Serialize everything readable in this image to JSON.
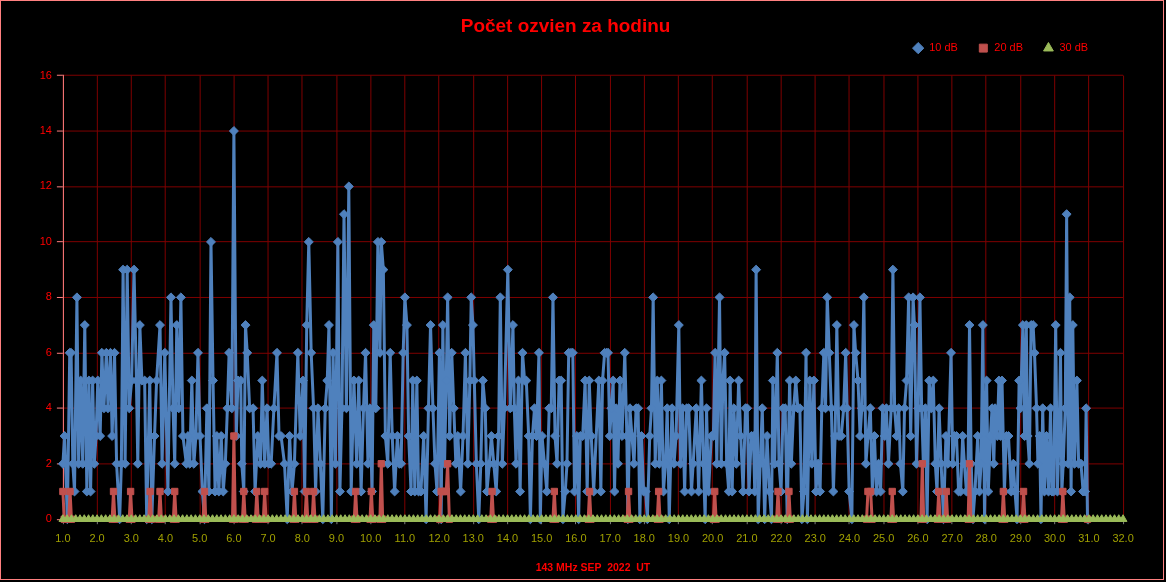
{
  "chart_data": {
    "type": "line",
    "title": "Počet ozvien za hodinu",
    "xlabel": "143 MHz SEP  2022  UT",
    "xlim": [
      1,
      32
    ],
    "xticks": [
      {
        "value": 1,
        "label": "1.0"
      },
      {
        "value": 2,
        "label": "2.0"
      },
      {
        "value": 3,
        "label": "3.0"
      },
      {
        "value": 4,
        "label": "4.0"
      },
      {
        "value": 5,
        "label": "5.0"
      },
      {
        "value": 6,
        "label": "6.0"
      },
      {
        "value": 7,
        "label": "7.0"
      },
      {
        "value": 8,
        "label": "8.0"
      },
      {
        "value": 9,
        "label": "9.0"
      },
      {
        "value": 10,
        "label": "10.0"
      },
      {
        "value": 11,
        "label": "11.0"
      },
      {
        "value": 12,
        "label": "12.0"
      },
      {
        "value": 13,
        "label": "13.0"
      },
      {
        "value": 14,
        "label": "14.0"
      },
      {
        "value": 15,
        "label": "15.0"
      },
      {
        "value": 16,
        "label": "16.0"
      },
      {
        "value": 17,
        "label": "17.0"
      },
      {
        "value": 18,
        "label": "18.0"
      },
      {
        "value": 19,
        "label": "19.0"
      },
      {
        "value": 20,
        "label": "20.0"
      },
      {
        "value": 21,
        "label": "21.0"
      },
      {
        "value": 22,
        "label": "22.0"
      },
      {
        "value": 23,
        "label": "23.0"
      },
      {
        "value": 24,
        "label": "24.0"
      },
      {
        "value": 25,
        "label": "25.0"
      },
      {
        "value": 26,
        "label": "26.0"
      },
      {
        "value": 27,
        "label": "27.0"
      },
      {
        "value": 28,
        "label": "28.0"
      },
      {
        "value": 29,
        "label": "29.0"
      },
      {
        "value": 30,
        "label": "30.0"
      },
      {
        "value": 31,
        "label": "31.0"
      },
      {
        "value": 32,
        "label": "32.0"
      }
    ],
    "ylim": [
      0,
      16
    ],
    "yticks": [
      0,
      2,
      4,
      6,
      8,
      10,
      12,
      14,
      16
    ],
    "grid": true,
    "legend": "top right",
    "series": [
      {
        "name": "10 dB",
        "color": "#4f81bd",
        "marker": "diamond",
        "x": [
          1.0,
          1.05,
          1.13,
          1.2,
          1.24,
          1.29,
          1.34,
          1.41,
          1.46,
          1.52,
          1.58,
          1.64,
          1.7,
          1.76,
          1.81,
          1.87,
          1.92,
          1.97,
          2.02,
          2.09,
          2.14,
          2.2,
          2.27,
          2.32,
          2.39,
          2.44,
          2.51,
          2.57,
          2.66,
          2.71,
          2.76,
          2.82,
          2.88,
          2.94,
          3.01,
          3.08,
          3.15,
          3.19,
          3.25,
          3.31,
          3.39,
          3.45,
          3.54,
          3.6,
          3.68,
          3.74,
          3.84,
          3.9,
          3.98,
          4.07,
          4.16,
          4.22,
          4.27,
          4.33,
          4.39,
          4.45,
          4.51,
          4.61,
          4.66,
          4.71,
          4.77,
          4.83,
          4.89,
          4.95,
          5.01,
          5.08,
          5.14,
          5.21,
          5.27,
          5.33,
          5.39,
          5.45,
          5.5,
          5.56,
          5.63,
          5.69,
          5.75,
          5.81,
          5.86,
          5.94,
          6.0,
          6.07,
          6.12,
          6.2,
          6.23,
          6.29,
          6.34,
          6.39,
          6.46,
          6.56,
          6.62,
          6.7,
          6.78,
          6.83,
          6.9,
          6.97,
          7.02,
          7.09,
          7.17,
          7.26,
          7.32,
          7.38,
          7.48,
          7.56,
          7.63,
          7.7,
          7.77,
          7.87,
          7.94,
          8.02,
          8.07,
          8.13,
          8.19,
          8.26,
          8.33,
          8.39,
          8.46,
          8.53,
          8.6,
          8.67,
          8.73,
          8.78,
          8.85,
          8.9,
          8.97,
          9.04,
          9.1,
          9.16,
          9.22,
          9.29,
          9.36,
          9.43,
          9.51,
          9.59,
          9.65,
          9.72,
          9.79,
          9.85,
          9.92,
          9.98,
          10.04,
          10.09,
          10.15,
          10.21,
          10.27,
          10.31,
          10.37,
          10.43,
          10.5,
          10.57,
          10.63,
          10.7,
          10.78,
          10.84,
          10.89,
          10.95,
          11.0,
          11.06,
          11.11,
          11.18,
          11.23,
          11.29,
          11.35,
          11.4,
          11.47,
          11.55,
          11.62,
          11.69,
          11.75,
          11.82,
          11.88,
          11.94,
          12.01,
          12.06,
          12.11,
          12.16,
          12.21,
          12.25,
          12.31,
          12.37,
          12.43,
          12.49,
          12.55,
          12.63,
          12.7,
          12.77,
          12.84,
          12.9,
          12.94,
          12.99,
          13.03,
          13.09,
          13.16,
          13.22,
          13.28,
          13.35,
          13.4,
          13.47,
          13.53,
          13.6,
          13.67,
          13.74,
          13.79,
          13.85,
          13.91,
          14.01,
          14.08,
          14.16,
          14.2,
          14.25,
          14.32,
          14.37,
          14.44,
          14.5,
          14.55,
          14.62,
          14.67,
          14.73,
          14.79,
          14.85,
          14.92,
          14.96,
          15.01,
          15.08,
          15.15,
          15.22,
          15.28,
          15.33,
          15.39,
          15.45,
          15.51,
          15.57,
          15.62,
          15.69,
          15.74,
          15.79,
          15.86,
          15.91,
          15.96,
          16.03,
          16.08,
          16.13,
          16.2,
          16.27,
          16.33,
          16.39,
          16.45,
          16.52,
          16.67,
          16.73,
          16.78,
          16.84,
          16.9,
          16.94,
          16.99,
          17.04,
          17.09,
          17.13,
          17.18,
          17.23,
          17.29,
          17.35,
          17.43,
          17.49,
          17.52,
          17.58,
          17.64,
          17.7,
          17.76,
          17.82,
          17.87,
          17.92,
          17.98,
          18.04,
          18.09,
          18.16,
          18.21,
          18.26,
          18.32,
          18.38,
          18.44,
          18.5,
          18.56,
          18.62,
          18.67,
          18.73,
          18.81,
          18.87,
          18.93,
          19.01,
          19.06,
          19.12,
          19.18,
          19.24,
          19.3,
          19.38,
          19.43,
          19.52,
          19.59,
          19.67,
          19.73,
          19.78,
          19.82,
          19.88,
          19.96,
          20.02,
          20.07,
          20.12,
          20.2,
          20.25,
          20.3,
          20.35,
          20.41,
          20.47,
          20.51,
          20.57,
          20.62,
          20.69,
          20.76,
          20.82,
          20.89,
          20.96,
          21.01,
          21.06,
          21.13,
          21.19,
          21.23,
          21.27,
          21.33,
          21.39,
          21.45,
          21.52,
          21.59,
          21.66,
          21.72,
          21.76,
          21.81,
          21.89,
          21.94,
          22.0,
          22.06,
          22.12,
          22.18,
          22.25,
          22.3,
          22.37,
          22.43,
          22.49,
          22.55,
          22.61,
          22.67,
          22.73,
          22.77,
          22.84,
          22.9,
          22.96,
          23.02,
          23.08,
          23.14,
          23.19,
          23.25,
          23.3,
          23.35,
          23.41,
          23.47,
          23.53,
          23.58,
          23.63,
          23.69,
          23.76,
          23.83,
          23.89,
          23.93,
          23.99,
          24.07,
          24.13,
          24.18,
          24.25,
          24.31,
          24.36,
          24.42,
          24.48,
          24.54,
          24.61,
          24.67,
          24.73,
          24.79,
          24.85,
          24.91,
          24.97,
          25.03,
          25.08,
          25.14,
          25.22,
          25.27,
          25.32,
          25.38,
          25.44,
          25.49,
          25.56,
          25.61,
          25.67,
          25.73,
          25.79,
          25.86,
          25.9,
          25.96,
          26.01,
          26.06,
          26.11,
          26.16,
          26.22,
          26.27,
          26.33,
          26.39,
          26.45,
          26.51,
          26.56,
          26.62,
          26.68,
          26.75,
          26.82,
          26.88,
          26.97,
          27.02,
          27.07,
          27.13,
          27.19,
          27.25,
          27.31,
          27.36,
          27.42,
          27.46,
          27.51,
          27.56,
          27.61,
          27.67,
          27.75,
          27.8,
          27.85,
          27.9,
          27.95,
          28.01,
          28.06,
          28.12,
          28.17,
          28.22,
          28.26,
          28.32,
          28.37,
          28.42,
          28.46,
          28.53,
          28.59,
          28.65,
          28.73,
          28.79,
          28.84,
          28.9,
          28.96,
          29.0,
          29.07,
          29.12,
          29.17,
          29.21,
          29.26,
          29.31,
          29.37,
          29.41,
          29.47,
          29.51,
          29.56,
          29.6,
          29.65,
          29.7,
          29.76,
          29.82,
          29.88,
          29.92,
          29.97,
          30.03,
          30.08,
          30.13,
          30.17,
          30.21,
          30.25,
          30.31,
          30.35,
          30.4,
          30.44,
          30.48,
          30.53,
          30.58,
          30.65,
          30.7,
          30.77,
          30.83,
          30.89,
          30.92,
          30.96
        ],
        "values": [
          2,
          3,
          0,
          6,
          6,
          2,
          1,
          8,
          2,
          5,
          2,
          7,
          1,
          5,
          1,
          5,
          2,
          3,
          5,
          3,
          6,
          4,
          6,
          4,
          6,
          3,
          6,
          2,
          0,
          2,
          9,
          2,
          9,
          4,
          5,
          9,
          5,
          2,
          7,
          5,
          5,
          0,
          5,
          0,
          3,
          5,
          7,
          2,
          6,
          1,
          8,
          4,
          2,
          7,
          4,
          8,
          3,
          2,
          3,
          2,
          5,
          2,
          3,
          6,
          3,
          1,
          0,
          4,
          1,
          10,
          5,
          1,
          3,
          1,
          3,
          1,
          2,
          4,
          6,
          4,
          14,
          3,
          5,
          5,
          2,
          1,
          7,
          6,
          4,
          4,
          1,
          3,
          2,
          5,
          2,
          4,
          2,
          2,
          4,
          6,
          3,
          3,
          2,
          0,
          3,
          1,
          2,
          6,
          3,
          5,
          1,
          7,
          10,
          6,
          4,
          1,
          4,
          2,
          0,
          4,
          5,
          7,
          0,
          6,
          2,
          10,
          1,
          4,
          11,
          4,
          12,
          1,
          5,
          2,
          5,
          1,
          4,
          6,
          2,
          4,
          1,
          7,
          4,
          10,
          6,
          10,
          9,
          3,
          2,
          6,
          3,
          1,
          3,
          2,
          2,
          6,
          8,
          7,
          3,
          1,
          5,
          1,
          5,
          1,
          1,
          3,
          0,
          4,
          7,
          4,
          2,
          1,
          6,
          0,
          7,
          2,
          5,
          8,
          3,
          6,
          4,
          2,
          3,
          1,
          3,
          6,
          2,
          5,
          8,
          7,
          5,
          2,
          0,
          2,
          5,
          4,
          1,
          2,
          3,
          2,
          1,
          3,
          8,
          2,
          4,
          9,
          4,
          7,
          4,
          2,
          5,
          1,
          6,
          5,
          5,
          3,
          0,
          3,
          4,
          3,
          6,
          0,
          3,
          2,
          1,
          4,
          4,
          8,
          3,
          2,
          5,
          5,
          0,
          1,
          2,
          6,
          6,
          6,
          1,
          3,
          0,
          3,
          3,
          5,
          1,
          5,
          3,
          1,
          5,
          1,
          5,
          6,
          6,
          6,
          3,
          4,
          5,
          1,
          4,
          2,
          5,
          3,
          6,
          3,
          0,
          4,
          3,
          2,
          4,
          4,
          0,
          3,
          1,
          1,
          0,
          3,
          4,
          8,
          2,
          5,
          2,
          5,
          1,
          2,
          4,
          0,
          4,
          2,
          3,
          7,
          2,
          4,
          1,
          4,
          4,
          1,
          2,
          4,
          1,
          5,
          2,
          0,
          4,
          1,
          3,
          3,
          6,
          2,
          8,
          2,
          5,
          6,
          2,
          1,
          5,
          1,
          4,
          2,
          5,
          3,
          1,
          4,
          4,
          1,
          3,
          3,
          1,
          9,
          0,
          2,
          4,
          0,
          3,
          1,
          0,
          5,
          2,
          6,
          2,
          1,
          4,
          4,
          0,
          5,
          2,
          4,
          5,
          4,
          4,
          0,
          1,
          6,
          0,
          5,
          2,
          5,
          1,
          2,
          1,
          4,
          6,
          4,
          8,
          6,
          4,
          1,
          3,
          7,
          3,
          3,
          4,
          6,
          4,
          1,
          0,
          7,
          6,
          5,
          3,
          4,
          8,
          2,
          3,
          4,
          1,
          3,
          1,
          2,
          1,
          4,
          3,
          4,
          2,
          4,
          9,
          4,
          3,
          4,
          2,
          1,
          4,
          5,
          8,
          3,
          8,
          7,
          2,
          4,
          8,
          4,
          2,
          4,
          0,
          5,
          4,
          5,
          2,
          1,
          4,
          2,
          0,
          3,
          2,
          6,
          2,
          3,
          3,
          1,
          1,
          3,
          2,
          1,
          1,
          7,
          2,
          0,
          1,
          3,
          1,
          2,
          7,
          0,
          5,
          1,
          3,
          4,
          2,
          4,
          3,
          5,
          3,
          5,
          1,
          3,
          3,
          1,
          2,
          1,
          0,
          5,
          4,
          7,
          3,
          7,
          3,
          2,
          7,
          7,
          6,
          4,
          2,
          3,
          0,
          4,
          1,
          3,
          1,
          4,
          1,
          1,
          7,
          1,
          3,
          6,
          1,
          2,
          4,
          11,
          2,
          8,
          1,
          7,
          2,
          5,
          2,
          2,
          1,
          1,
          4,
          0
        ]
      },
      {
        "name": "20 dB",
        "color": "#c0504d",
        "marker": "square",
        "x": [
          1.0,
          1.04,
          1.17,
          1.21,
          1.25,
          2.44,
          2.48,
          2.52,
          2.94,
          2.98,
          3.02,
          3.51,
          3.55,
          3.59,
          3.8,
          3.84,
          3.88,
          4.23,
          4.27,
          4.31,
          5.1,
          5.14,
          5.18,
          5.96,
          6.0,
          6.04,
          6.25,
          6.29,
          6.33,
          6.63,
          6.67,
          6.71,
          6.86,
          6.9,
          6.94,
          7.73,
          7.77,
          7.81,
          8.08,
          8.12,
          8.16,
          8.29,
          8.33,
          8.37,
          9.52,
          9.56,
          9.6,
          9.98,
          10.02,
          10.06,
          10.27,
          10.31,
          10.35,
          12.02,
          12.06,
          12.11,
          12.16,
          12.21,
          12.25,
          12.3,
          13.51,
          13.55,
          13.59,
          15.33,
          15.37,
          15.41,
          16.36,
          16.4,
          16.44,
          17.5,
          17.54,
          17.58,
          18.38,
          18.42,
          18.46,
          20.02,
          20.06,
          20.1,
          21.87,
          21.91,
          21.95,
          22.19,
          22.23,
          22.27,
          24.5,
          24.54,
          24.62,
          24.66,
          25.21,
          25.25,
          25.29,
          26.09,
          26.13,
          26.17,
          26.57,
          26.61,
          26.65,
          26.79,
          26.83,
          26.87,
          27.47,
          27.51,
          27.55,
          28.46,
          28.5,
          28.54,
          29.05,
          29.09,
          29.13,
          30.2,
          30.24,
          30.28,
          30.96
        ],
        "values": [
          1,
          0,
          0,
          1,
          0,
          0,
          1,
          0,
          0,
          1,
          0,
          0,
          1,
          0,
          0,
          1,
          0,
          0,
          1,
          0,
          0,
          1,
          0,
          0,
          3,
          0,
          0,
          1,
          0,
          0,
          1,
          0,
          0,
          1,
          0,
          0,
          1,
          0,
          0,
          1,
          0,
          0,
          1,
          0,
          0,
          1,
          0,
          0,
          1,
          0,
          0,
          2,
          0,
          0,
          1,
          1,
          1,
          1,
          2,
          0,
          0,
          1,
          0,
          0,
          1,
          0,
          0,
          1,
          0,
          0,
          1,
          0,
          0,
          1,
          0,
          0,
          1,
          0,
          0,
          1,
          0,
          0,
          1,
          0,
          0,
          1,
          1,
          0,
          0,
          1,
          0,
          0,
          2,
          0,
          0,
          1,
          0,
          0,
          1,
          0,
          0,
          2,
          0,
          0,
          1,
          0,
          0,
          1,
          0,
          0,
          1,
          0,
          0
        ]
      },
      {
        "name": "30 dB",
        "color": "#9bbb59",
        "marker": "triangle",
        "x": [
          1,
          1.125,
          1.25,
          1.375,
          1.5,
          1.625,
          1.75,
          1.875,
          2,
          2.125,
          2.25,
          2.375,
          2.5,
          2.625,
          2.75,
          2.875,
          3,
          3.125,
          3.25,
          3.375,
          3.5,
          3.625,
          3.75,
          3.875,
          4,
          4.125,
          4.25,
          4.375,
          4.5,
          4.625,
          4.75,
          4.875,
          5,
          5.125,
          5.25,
          5.375,
          5.5,
          5.625,
          5.75,
          5.875,
          6,
          6.125,
          6.25,
          6.375,
          6.5,
          6.625,
          6.75,
          6.875,
          7,
          7.125,
          7.25,
          7.375,
          7.5,
          7.625,
          7.75,
          7.875,
          8,
          8.125,
          8.25,
          8.375,
          8.5,
          8.625,
          8.75,
          8.875,
          9,
          9.125,
          9.25,
          9.375,
          9.5,
          9.625,
          9.75,
          9.875,
          10,
          10.125,
          10.25,
          10.375,
          10.5,
          10.625,
          10.75,
          10.875,
          11,
          11.125,
          11.25,
          11.375,
          11.5,
          11.625,
          11.75,
          11.875,
          12,
          12.125,
          12.25,
          12.375,
          12.5,
          12.625,
          12.75,
          12.875,
          13,
          13.125,
          13.25,
          13.375,
          13.5,
          13.625,
          13.75,
          13.875,
          14,
          14.125,
          14.25,
          14.375,
          14.5,
          14.625,
          14.75,
          14.875,
          15,
          15.125,
          15.25,
          15.375,
          15.5,
          15.625,
          15.75,
          15.875,
          16,
          16.125,
          16.25,
          16.375,
          16.5,
          16.625,
          16.75,
          16.875,
          17,
          17.125,
          17.25,
          17.375,
          17.5,
          17.625,
          17.75,
          17.875,
          18,
          18.125,
          18.25,
          18.375,
          18.5,
          18.625,
          18.75,
          18.875,
          19,
          19.125,
          19.25,
          19.375,
          19.5,
          19.625,
          19.75,
          19.875,
          20,
          20.125,
          20.25,
          20.375,
          20.5,
          20.625,
          20.75,
          20.875,
          21,
          21.125,
          21.25,
          21.375,
          21.5,
          21.625,
          21.75,
          21.875,
          22,
          22.125,
          22.25,
          22.375,
          22.5,
          22.625,
          22.75,
          22.875,
          23,
          23.125,
          23.25,
          23.375,
          23.5,
          23.625,
          23.75,
          23.875,
          24,
          24.125,
          24.25,
          24.375,
          24.5,
          24.625,
          24.75,
          24.875,
          25,
          25.125,
          25.25,
          25.375,
          25.5,
          25.625,
          25.75,
          25.875,
          26,
          26.125,
          26.25,
          26.375,
          26.5,
          26.625,
          26.75,
          26.875,
          27,
          27.125,
          27.25,
          27.375,
          27.5,
          27.625,
          27.75,
          27.875,
          28,
          28.125,
          28.25,
          28.375,
          28.5,
          28.625,
          28.75,
          28.875,
          29,
          29.125,
          29.25,
          29.375,
          29.5,
          29.625,
          29.75,
          29.875,
          30,
          30.125,
          30.25,
          30.375,
          30.5,
          30.625,
          30.75,
          30.875,
          31,
          31.125,
          31.25,
          31.375,
          31.5,
          31.625,
          31.75,
          31.875,
          32
        ],
        "values": [
          0,
          0,
          0,
          0,
          0,
          0,
          0,
          0,
          0,
          0,
          0,
          0,
          0,
          0,
          0,
          0,
          0,
          0,
          0,
          0,
          0,
          0,
          0,
          0,
          0,
          0,
          0,
          0,
          0,
          0,
          0,
          0,
          0,
          0,
          0,
          0,
          0,
          0,
          0,
          0,
          0,
          0,
          0,
          0,
          0,
          0,
          0,
          0,
          0,
          0,
          0,
          0,
          0,
          0,
          0,
          0,
          0,
          0,
          0,
          0,
          0,
          0,
          0,
          0,
          0,
          0,
          0,
          0,
          0,
          0,
          0,
          0,
          0,
          0,
          0,
          0,
          0,
          0,
          0,
          0,
          0,
          0,
          0,
          0,
          0,
          0,
          0,
          0,
          0,
          0,
          0,
          0,
          0,
          0,
          0,
          0,
          0,
          0,
          0,
          0,
          0,
          0,
          0,
          0,
          0,
          0,
          0,
          0,
          0,
          0,
          0,
          0,
          0,
          0,
          0,
          0,
          0,
          0,
          0,
          0,
          0,
          0,
          0,
          0,
          0,
          0,
          0,
          0,
          0,
          0,
          0,
          0,
          0,
          0,
          0,
          0,
          0,
          0,
          0,
          0,
          0,
          0,
          0,
          0,
          0,
          0,
          0,
          0,
          0,
          0,
          0,
          0,
          0,
          0,
          0,
          0,
          0,
          0,
          0,
          0,
          0,
          0,
          0,
          0,
          0,
          0,
          0,
          0,
          0,
          0,
          0,
          0,
          0,
          0,
          0,
          0,
          0,
          0,
          0,
          0,
          0,
          0,
          0,
          0,
          0,
          0,
          0,
          0,
          0,
          0,
          0,
          0,
          0,
          0,
          0,
          0,
          0,
          0,
          0,
          0,
          0,
          0,
          0,
          0,
          0,
          0,
          0,
          0,
          0,
          0,
          0,
          0,
          0,
          0,
          0,
          0,
          0,
          0,
          0,
          0,
          0,
          0,
          0,
          0,
          0,
          0,
          0,
          0,
          0,
          0,
          0,
          0,
          0,
          0,
          0,
          0,
          0,
          0,
          0,
          0,
          0,
          0,
          0,
          0,
          0,
          0,
          0,
          0,
          0
        ]
      }
    ]
  }
}
